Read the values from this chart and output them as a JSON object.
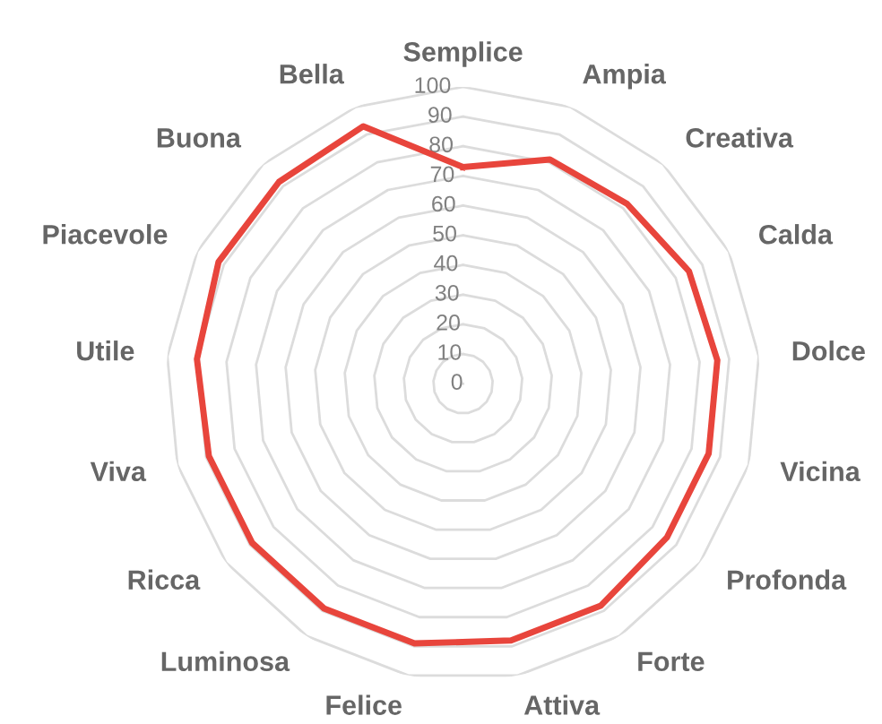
{
  "chart_data": {
    "type": "radar",
    "categories": [
      "Semplice",
      "Ampia",
      "Creativa",
      "Calda",
      "Dolce",
      "Vicina",
      "Profonda",
      "Forte",
      "Attiva",
      "Felice",
      "Luminosa",
      "Ricca",
      "Viva",
      "Utile",
      "Piacevole",
      "Buona",
      "Bella"
    ],
    "series": [
      {
        "color": "#e8453c",
        "values": [
          73,
          81,
          82,
          85,
          86,
          86,
          86,
          88,
          88,
          89,
          89,
          89,
          89,
          90,
          92,
          92,
          93
        ]
      }
    ],
    "ylim": [
      0,
      100
    ],
    "yticks": [
      0,
      10,
      20,
      30,
      40,
      50,
      60,
      70,
      80,
      90,
      100
    ],
    "grid": true
  }
}
